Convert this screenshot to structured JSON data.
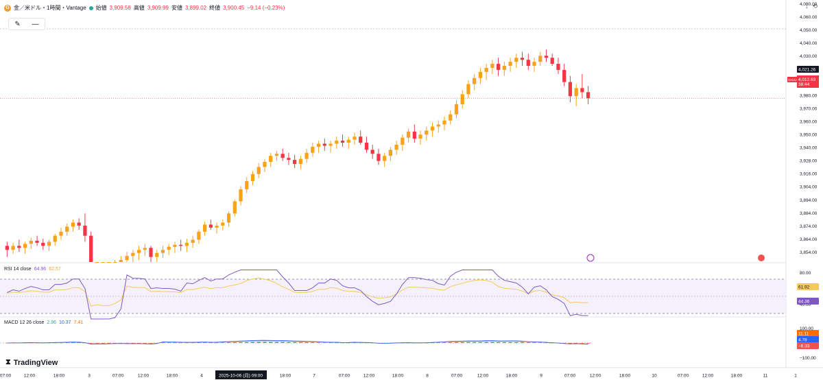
{
  "legend": {
    "symbol_icon": "gold-coin-icon",
    "symbol": "金／米ドル・1時間・Vantage",
    "open_label": "始値",
    "open": "3,909.58",
    "high_label": "高値",
    "high": "3,909.99",
    "low_label": "安値",
    "low": "3,899.02",
    "close_label": "終値",
    "close": "3,900.45",
    "change": "−9.14 (−0.23%)"
  },
  "toolbar": {
    "brush_icon": "brush-icon",
    "line_icon": "horizontal-line-icon"
  },
  "topright": {
    "a": "↓",
    "b": "⟲"
  },
  "price_axis": {
    "labels": [
      "4,080.00",
      "4,060.00",
      "4,050.00",
      "4,040.00",
      "4,030.00",
      "4,000.00",
      "3,990.00",
      "3,980.00",
      "3,970.00",
      "3,960.00",
      "3,950.00",
      "3,940.00",
      "3,928.00",
      "3,916.00",
      "3,904.00",
      "3,894.00",
      "3,884.00",
      "3,874.00",
      "3,864.00",
      "3,854.00"
    ],
    "current_price": "4,021.26",
    "symbol_price_label": "XAUUSD",
    "symbol_price": "4,012.63",
    "countdown": "38:44"
  },
  "time_axis": {
    "labels": [
      "07:00",
      "12:00",
      "18:00",
      "3",
      "07:00",
      "12:00",
      "18:00",
      "4",
      "2025-10-06 (月)  09:00",
      "18:00",
      "7",
      "07:00",
      "12:00",
      "18:00",
      "8",
      "07:00",
      "12:00",
      "18:00",
      "9",
      "07:00",
      "12:00",
      "18:00",
      "10",
      "07:00",
      "12:00",
      "18:00",
      "11",
      "1"
    ]
  },
  "rsi": {
    "title": "RSI 14 close",
    "v1": "64.96",
    "v2": "62.57",
    "axis": [
      "80.00",
      "40.00"
    ],
    "tag1": "61.92",
    "tag2": "44.36"
  },
  "macd": {
    "title": "MACD 12 26 close",
    "v1": "2.96",
    "v2": "10.37",
    "v3": "7.41",
    "axis": [
      "100.00",
      "−100.00"
    ],
    "tag1": "11.11",
    "tag2": "4.78",
    "tag3": "−6.33"
  },
  "logo": "TradingView",
  "colors": {
    "up": "#f7a21b",
    "down": "#f23645",
    "rsi": "#7e57c2",
    "rsi_ma": "#f7c95c",
    "macd": "#2962ff",
    "signal": "#ff6d00"
  },
  "chart_data": {
    "type": "candlestick",
    "title": "金／米ドル・1時間・Vantage",
    "ylim": [
      3850,
      4082
    ],
    "candles": [
      [
        3866,
        3870,
        3855,
        3862
      ],
      [
        3862,
        3869,
        3858,
        3866
      ],
      [
        3866,
        3872,
        3860,
        3864
      ],
      [
        3864,
        3870,
        3858,
        3868
      ],
      [
        3868,
        3874,
        3863,
        3871
      ],
      [
        3871,
        3876,
        3866,
        3869
      ],
      [
        3869,
        3873,
        3862,
        3866
      ],
      [
        3866,
        3872,
        3861,
        3870
      ],
      [
        3870,
        3878,
        3866,
        3876
      ],
      [
        3876,
        3884,
        3872,
        3880
      ],
      [
        3880,
        3888,
        3876,
        3885
      ],
      [
        3885,
        3892,
        3880,
        3889
      ],
      [
        3889,
        3893,
        3882,
        3886
      ],
      [
        3886,
        3898,
        3870,
        3876
      ],
      [
        3876,
        3880,
        3820,
        3830
      ],
      [
        3830,
        3842,
        3825,
        3838
      ],
      [
        3838,
        3846,
        3832,
        3841
      ],
      [
        3841,
        3849,
        3836,
        3844
      ],
      [
        3844,
        3852,
        3840,
        3849
      ],
      [
        3849,
        3856,
        3843,
        3852
      ],
      [
        3852,
        3860,
        3846,
        3856
      ],
      [
        3856,
        3862,
        3850,
        3859
      ],
      [
        3859,
        3866,
        3852,
        3862
      ],
      [
        3862,
        3868,
        3856,
        3864
      ],
      [
        3864,
        3866,
        3850,
        3855
      ],
      [
        3855,
        3862,
        3848,
        3859
      ],
      [
        3859,
        3866,
        3854,
        3862
      ],
      [
        3862,
        3868,
        3857,
        3865
      ],
      [
        3865,
        3870,
        3859,
        3867
      ],
      [
        3867,
        3872,
        3861,
        3866
      ],
      [
        3866,
        3873,
        3860,
        3869
      ],
      [
        3869,
        3876,
        3864,
        3872
      ],
      [
        3872,
        3882,
        3868,
        3880
      ],
      [
        3880,
        3890,
        3876,
        3887
      ],
      [
        3887,
        3892,
        3882,
        3884
      ],
      [
        3884,
        3889,
        3878,
        3886
      ],
      [
        3886,
        3892,
        3881,
        3889
      ],
      [
        3889,
        3900,
        3885,
        3898
      ],
      [
        3898,
        3912,
        3895,
        3910
      ],
      [
        3910,
        3925,
        3906,
        3922
      ],
      [
        3922,
        3934,
        3918,
        3930
      ],
      [
        3930,
        3940,
        3926,
        3937
      ],
      [
        3937,
        3948,
        3933,
        3944
      ],
      [
        3944,
        3952,
        3939,
        3949
      ],
      [
        3949,
        3958,
        3944,
        3955
      ],
      [
        3955,
        3960,
        3950,
        3957
      ],
      [
        3957,
        3962,
        3950,
        3953
      ],
      [
        3953,
        3958,
        3946,
        3951
      ],
      [
        3951,
        3956,
        3943,
        3947
      ],
      [
        3947,
        3955,
        3942,
        3952
      ],
      [
        3952,
        3962,
        3948,
        3958
      ],
      [
        3958,
        3968,
        3954,
        3964
      ],
      [
        3964,
        3970,
        3958,
        3967
      ],
      [
        3967,
        3972,
        3960,
        3965
      ],
      [
        3965,
        3970,
        3958,
        3967
      ],
      [
        3967,
        3974,
        3962,
        3970
      ],
      [
        3970,
        3976,
        3964,
        3968
      ],
      [
        3968,
        3974,
        3962,
        3971
      ],
      [
        3971,
        3978,
        3966,
        3974
      ],
      [
        3974,
        3980,
        3966,
        3968
      ],
      [
        3968,
        3974,
        3958,
        3961
      ],
      [
        3961,
        3966,
        3952,
        3957
      ],
      [
        3957,
        3962,
        3946,
        3950
      ],
      [
        3950,
        3958,
        3944,
        3955
      ],
      [
        3955,
        3964,
        3950,
        3961
      ],
      [
        3961,
        3970,
        3956,
        3966
      ],
      [
        3966,
        3976,
        3960,
        3973
      ],
      [
        3973,
        3982,
        3968,
        3979
      ],
      [
        3979,
        3986,
        3968,
        3972
      ],
      [
        3972,
        3980,
        3966,
        3976
      ],
      [
        3976,
        3984,
        3970,
        3980
      ],
      [
        3980,
        3988,
        3974,
        3984
      ],
      [
        3984,
        3990,
        3978,
        3986
      ],
      [
        3986,
        3994,
        3980,
        3990
      ],
      [
        3990,
        4000,
        3986,
        3996
      ],
      [
        3996,
        4010,
        3992,
        4006
      ],
      [
        4006,
        4020,
        4002,
        4016
      ],
      [
        4016,
        4030,
        4012,
        4026
      ],
      [
        4026,
        4036,
        4020,
        4032
      ],
      [
        4032,
        4042,
        4026,
        4038
      ],
      [
        4038,
        4046,
        4030,
        4042
      ],
      [
        4042,
        4050,
        4036,
        4046
      ],
      [
        4046,
        4052,
        4034,
        4040
      ],
      [
        4040,
        4048,
        4034,
        4044
      ],
      [
        4044,
        4052,
        4038,
        4048
      ],
      [
        4048,
        4056,
        4042,
        4052
      ],
      [
        4052,
        4058,
        4044,
        4050
      ],
      [
        4050,
        4056,
        4040,
        4044
      ],
      [
        4044,
        4052,
        4038,
        4048
      ],
      [
        4048,
        4058,
        4044,
        4054
      ],
      [
        4054,
        4060,
        4048,
        4052
      ],
      [
        4052,
        4056,
        4044,
        4046
      ],
      [
        4046,
        4052,
        4036,
        4040
      ],
      [
        4040,
        4046,
        4024,
        4028
      ],
      [
        4028,
        4034,
        4008,
        4014
      ],
      [
        4014,
        4026,
        4004,
        4022
      ],
      [
        4022,
        4036,
        4012,
        4018
      ],
      [
        4018,
        4024,
        4006,
        4012
      ]
    ]
  }
}
